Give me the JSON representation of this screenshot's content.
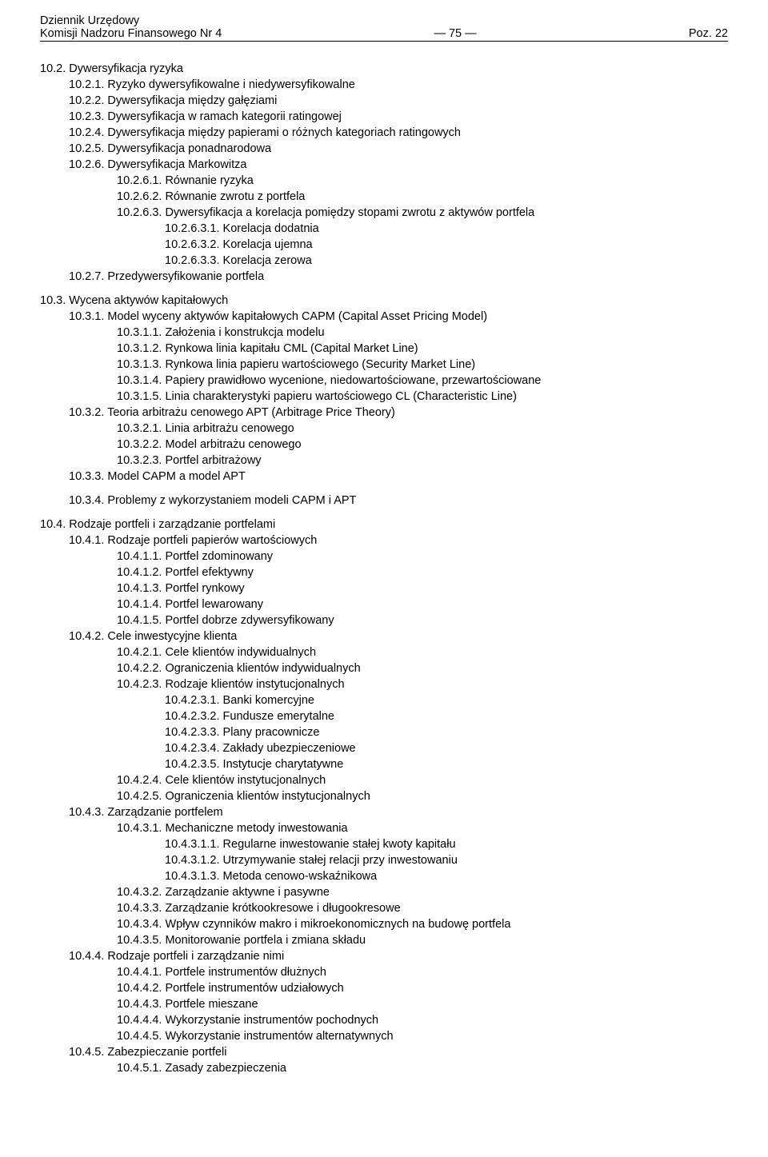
{
  "header": {
    "line1": "Dziennik Urzędowy",
    "line2": "Komisji Nadzoru Finansowego Nr 4",
    "page": "— 75 —",
    "ref": "Poz. 22"
  },
  "c": {
    "s10_2": "10.2. Dywersyfikacja ryzyka",
    "s10_2_1": "10.2.1. Ryzyko dywersyfikowalne i niedywersyfikowalne",
    "s10_2_2": "10.2.2. Dywersyfikacja między gałęziami",
    "s10_2_3": "10.2.3. Dywersyfikacja w ramach kategorii ratingowej",
    "s10_2_4": "10.2.4. Dywersyfikacja między papierami o różnych kategoriach ratingowych",
    "s10_2_5": "10.2.5. Dywersyfikacja ponadnarodowa",
    "s10_2_6": "10.2.6. Dywersyfikacja Markowitza",
    "s10_2_6_1": "10.2.6.1. Równanie ryzyka",
    "s10_2_6_2": "10.2.6.2. Równanie zwrotu z portfela",
    "s10_2_6_3": "10.2.6.3. Dywersyfikacja a korelacja pomiędzy stopami zwrotu z aktywów portfela",
    "s10_2_6_3_1": "10.2.6.3.1. Korelacja dodatnia",
    "s10_2_6_3_2": "10.2.6.3.2. Korelacja ujemna",
    "s10_2_6_3_3": "10.2.6.3.3. Korelacja zerowa",
    "s10_2_7": "10.2.7. Przedywersyfikowanie portfela",
    "s10_3": "10.3. Wycena aktywów kapitałowych",
    "s10_3_1": "10.3.1. Model wyceny aktywów kapitałowych CAPM (Capital Asset Pricing Model)",
    "s10_3_1_1": "10.3.1.1. Założenia i konstrukcja modelu",
    "s10_3_1_2": "10.3.1.2. Rynkowa linia kapitału CML (Capital Market Line)",
    "s10_3_1_3": "10.3.1.3. Rynkowa linia papieru wartościowego (Security Market Line)",
    "s10_3_1_4": "10.3.1.4. Papiery prawidłowo wycenione, niedowartościowane, przewartościowane",
    "s10_3_1_5": "10.3.1.5. Linia charakterystyki papieru wartościowego CL (Characteristic Line)",
    "s10_3_2": "10.3.2. Teoria arbitrażu cenowego APT (Arbitrage Price Theory)",
    "s10_3_2_1": "10.3.2.1. Linia arbitrażu cenowego",
    "s10_3_2_2": "10.3.2.2. Model arbitrażu cenowego",
    "s10_3_2_3": "10.3.2.3. Portfel arbitrażowy",
    "s10_3_3": "10.3.3. Model CAPM a model APT",
    "s10_3_4": "10.3.4. Problemy z wykorzystaniem modeli CAPM i APT",
    "s10_4": "10.4. Rodzaje portfeli i zarządzanie portfelami",
    "s10_4_1": "10.4.1. Rodzaje portfeli papierów wartościowych",
    "s10_4_1_1": "10.4.1.1. Portfel zdominowany",
    "s10_4_1_2": "10.4.1.2. Portfel efektywny",
    "s10_4_1_3": "10.4.1.3. Portfel rynkowy",
    "s10_4_1_4": "10.4.1.4. Portfel lewarowany",
    "s10_4_1_5": "10.4.1.5. Portfel dobrze zdywersyfikowany",
    "s10_4_2": "10.4.2. Cele inwestycyjne klienta",
    "s10_4_2_1": "10.4.2.1. Cele klientów indywidualnych",
    "s10_4_2_2": "10.4.2.2. Ograniczenia klientów indywidualnych",
    "s10_4_2_3": "10.4.2.3. Rodzaje klientów instytucjonalnych",
    "s10_4_2_3_1": "10.4.2.3.1. Banki komercyjne",
    "s10_4_2_3_2": "10.4.2.3.2. Fundusze emerytalne",
    "s10_4_2_3_3": "10.4.2.3.3. Plany pracownicze",
    "s10_4_2_3_4": "10.4.2.3.4. Zakłady ubezpieczeniowe",
    "s10_4_2_3_5": "10.4.2.3.5. Instytucje charytatywne",
    "s10_4_2_4": "10.4.2.4. Cele klientów instytucjonalnych",
    "s10_4_2_5": "10.4.2.5. Ograniczenia klientów instytucjonalnych",
    "s10_4_3": "10.4.3. Zarządzanie portfelem",
    "s10_4_3_1": "10.4.3.1. Mechaniczne metody inwestowania",
    "s10_4_3_1_1": "10.4.3.1.1. Regularne inwestowanie stałej kwoty kapitału",
    "s10_4_3_1_2": "10.4.3.1.2. Utrzymywanie stałej relacji przy inwestowaniu",
    "s10_4_3_1_3": "10.4.3.1.3. Metoda cenowo-wskaźnikowa",
    "s10_4_3_2": "10.4.3.2. Zarządzanie aktywne i pasywne",
    "s10_4_3_3": "10.4.3.3. Zarządzanie krótkookresowe i długookresowe",
    "s10_4_3_4": "10.4.3.4. Wpływ czynników makro i mikroekonomicznych na budowę portfela",
    "s10_4_3_5": "10.4.3.5. Monitorowanie portfela i zmiana składu",
    "s10_4_4": "10.4.4. Rodzaje portfeli i zarządzanie nimi",
    "s10_4_4_1": "10.4.4.1. Portfele instrumentów dłużnych",
    "s10_4_4_2": "10.4.4.2. Portfele instrumentów udziałowych",
    "s10_4_4_3": "10.4.4.3. Portfele mieszane",
    "s10_4_4_4": "10.4.4.4. Wykorzystanie instrumentów pochodnych",
    "s10_4_4_5": "10.4.4.5. Wykorzystanie instrumentów alternatywnych",
    "s10_4_5": "10.4.5. Zabezpieczanie portfeli",
    "s10_4_5_1": "10.4.5.1. Zasady zabezpieczenia"
  }
}
